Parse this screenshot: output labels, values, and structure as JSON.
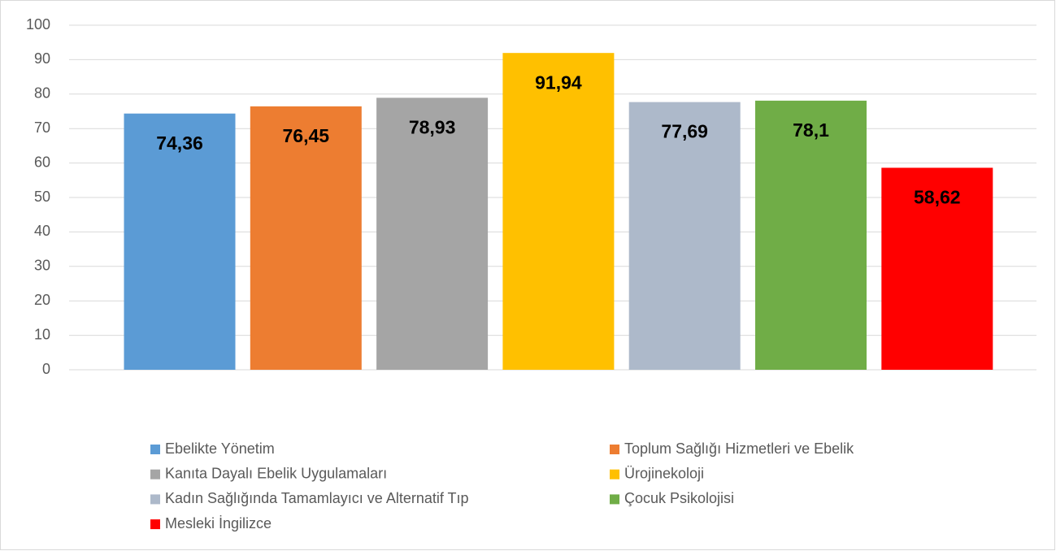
{
  "chart_data": {
    "type": "bar",
    "series": [
      {
        "name": "Ebelikte Yönetim",
        "color": "#5b9bd5",
        "values": [
          74.36
        ],
        "value_labels": [
          "74,36"
        ]
      },
      {
        "name": "Toplum Sağlığı Hizmetleri ve Ebelik",
        "color": "#ed7d31",
        "values": [
          76.45
        ],
        "value_labels": [
          "76,45"
        ]
      },
      {
        "name": "Kanıta Dayalı Ebelik Uygulamaları",
        "color": "#a5a5a5",
        "values": [
          78.93
        ],
        "value_labels": [
          "78,93"
        ]
      },
      {
        "name": "Ürojinekoloji",
        "color": "#ffc000",
        "values": [
          91.94
        ],
        "value_labels": [
          "91,94"
        ]
      },
      {
        "name": "Kadın Sağlığında Tamamlayıcı ve Alternatif Tıp",
        "color": "#adb9ca",
        "values": [
          77.69
        ],
        "value_labels": [
          "77,69"
        ]
      },
      {
        "name": "Çocuk Psikolojisi",
        "color": "#70ad47",
        "values": [
          78.1
        ],
        "value_labels": [
          "78,1"
        ]
      },
      {
        "name": "Mesleki İngilizce",
        "color": "#ff0000",
        "values": [
          58.62
        ],
        "value_labels": [
          "58,62"
        ]
      }
    ],
    "ylim": [
      0,
      100
    ],
    "yticks": [
      0,
      10,
      20,
      30,
      40,
      50,
      60,
      70,
      80,
      90,
      100
    ],
    "grid": true,
    "legend": "bottom"
  }
}
